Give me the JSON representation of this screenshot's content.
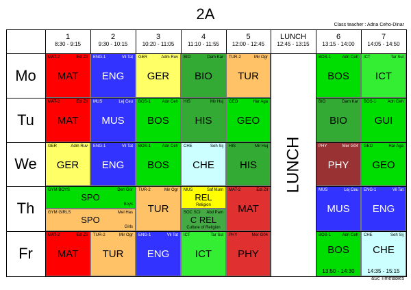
{
  "title": "2A",
  "class_teacher": "Class teacher : Adna Ceho-Dinar",
  "footer": "aSc Timetables",
  "lunch_label": "LUNCH",
  "periods": [
    {
      "num": "1",
      "time": "8:30 - 9:15"
    },
    {
      "num": "2",
      "time": "9:30 - 10:15"
    },
    {
      "num": "3",
      "time": "10:20 - 11:05"
    },
    {
      "num": "4",
      "time": "11:10 - 11:55"
    },
    {
      "num": "5",
      "time": "12:00 - 12:45"
    },
    {
      "num": "LUNCH",
      "time": "12:45 - 13:15"
    },
    {
      "num": "6",
      "time": "13:15 - 14:00"
    },
    {
      "num": "7",
      "time": "14:05 - 14:50"
    }
  ],
  "days": [
    "Mo",
    "Tu",
    "We",
    "Th",
    "Fr"
  ],
  "colors": {
    "red": "#ff0000",
    "blue": "#3333ff",
    "yellow": "#ffff66",
    "green": "#00dd00",
    "orange": "#ffc266",
    "darkgreen": "#33aa33",
    "cyan": "#ccffff",
    "brown": "#993333",
    "lime": "#33ee33",
    "deepred": "#e00000",
    "yellowgold": "#ffff00",
    "olive": "#44aa44",
    "salmon": "#e03030"
  },
  "lessons": [
    {
      "id": "mo1",
      "code": "MAT-2",
      "teacher": "Edi Zil",
      "subject": "MAT",
      "color": "#ff0000"
    },
    {
      "id": "mo2",
      "code": "ENG-1",
      "teacher": "Vil Tat",
      "subject": "ENG",
      "color": "#3333ff"
    },
    {
      "id": "mo3",
      "code": "GER",
      "teacher": "Adm Ruv",
      "subject": "GER",
      "color": "#ffff66"
    },
    {
      "id": "mo4",
      "code": "BIO",
      "teacher": "Dam Kar",
      "subject": "BIO",
      "color": "#33aa33"
    },
    {
      "id": "mo5",
      "code": "TUR-2",
      "teacher": "Mir Ogr",
      "subject": "TUR",
      "color": "#ffc266"
    },
    {
      "id": "mo6",
      "code": "BOS-1",
      "teacher": "Adn Ceh",
      "subject": "BOS",
      "color": "#00dd00"
    },
    {
      "id": "mo7",
      "code": "ICT",
      "teacher": "Tar Sul",
      "subject": "ICT",
      "color": "#33ee33"
    },
    {
      "id": "tu1",
      "code": "MAT-2",
      "teacher": "Edi Zil",
      "subject": "MAT",
      "color": "#ff0000"
    },
    {
      "id": "tu2",
      "code": "MUS",
      "teacher": "Lej Ceu",
      "subject": "MUS",
      "color": "#3333ff"
    },
    {
      "id": "tu3",
      "code": "BOS-1",
      "teacher": "Adn Ceh",
      "subject": "BOS",
      "color": "#00dd00"
    },
    {
      "id": "tu4",
      "code": "HIS",
      "teacher": "Mir Huj",
      "subject": "HIS",
      "color": "#33aa33"
    },
    {
      "id": "tu5",
      "code": "GEO",
      "teacher": "Har Aga",
      "subject": "GEO",
      "color": "#00dd00"
    },
    {
      "id": "tu6",
      "code": "BIO",
      "teacher": "Dam Kar",
      "subject": "BIO",
      "color": "#33aa33"
    },
    {
      "id": "tu7",
      "code": "BOS-1",
      "teacher": "Adn Ceh",
      "subject": "GUI",
      "color": "#00dd00"
    },
    {
      "id": "we1",
      "code": "GER",
      "teacher": "Adm Ruv",
      "subject": "GER",
      "color": "#ffff66"
    },
    {
      "id": "we2",
      "code": "ENG-1",
      "teacher": "Vil Tat",
      "subject": "ENG",
      "color": "#3333ff"
    },
    {
      "id": "we3",
      "code": "BOS-1",
      "teacher": "Adn Ceh",
      "subject": "BOS",
      "color": "#00dd00"
    },
    {
      "id": "we4",
      "code": "CHE",
      "teacher": "Seh Sij",
      "subject": "CHE",
      "color": "#ccffff"
    },
    {
      "id": "we5",
      "code": "HIS",
      "teacher": "Mir Huj",
      "subject": "HIS",
      "color": "#33aa33"
    },
    {
      "id": "we6",
      "code": "PHY",
      "teacher": "Mer G04",
      "subject": "PHY",
      "color": "#993333"
    },
    {
      "id": "we7",
      "code": "GEO",
      "teacher": "Har Aga",
      "subject": "GEO",
      "color": "#00dd00"
    },
    {
      "id": "th12a",
      "code": "GYM BOYS",
      "teacher": "Den Gor",
      "subject": "SPO",
      "note": "Boys",
      "color": "#00dd00"
    },
    {
      "id": "th12b",
      "code": "GYM GIRLS",
      "teacher": "Mel Has",
      "subject": "SPO",
      "note": "Girls",
      "color": "#ffc266"
    },
    {
      "id": "th3",
      "code": "TUR-2",
      "teacher": "Mir Ogr",
      "subject": "TUR",
      "color": "#ffc266"
    },
    {
      "id": "th4a",
      "code": "MUS",
      "teacher": "Saf Mum",
      "subject": "REL",
      "extra": "Religion",
      "color": "#ffff00"
    },
    {
      "id": "th4b",
      "code": "SOC SCI",
      "teacher": "Abd Pam",
      "subject": "C REL",
      "extra": "Culture of Religion",
      "color": "#44aa44"
    },
    {
      "id": "th5",
      "code": "MAT-2",
      "teacher": "Edi Zil",
      "subject": "MAT",
      "color": "#e03030"
    },
    {
      "id": "th6",
      "code": "MUS",
      "teacher": "Lej Ceu",
      "subject": "MUS",
      "color": "#3333ff"
    },
    {
      "id": "th7",
      "code": "ENG-1",
      "teacher": "Vil Tat",
      "subject": "ENG",
      "color": "#3333ff"
    },
    {
      "id": "fr1",
      "code": "MAT-2",
      "teacher": "Edi Zil",
      "subject": "MAT",
      "color": "#ff0000"
    },
    {
      "id": "fr2",
      "code": "TUR-2",
      "teacher": "Mir Ogr",
      "subject": "TUR",
      "color": "#ffc266"
    },
    {
      "id": "fr3",
      "code": "ENG-1",
      "teacher": "Vil Tat",
      "subject": "ENG",
      "color": "#3333ff"
    },
    {
      "id": "fr4",
      "code": "ICT",
      "teacher": "Tar Sul",
      "subject": "ICT",
      "color": "#33ee33"
    },
    {
      "id": "fr5",
      "code": "PHY",
      "teacher": "Mer G04",
      "subject": "PHY",
      "color": "#e03030"
    },
    {
      "id": "fr6",
      "code": "BOS-1",
      "teacher": "Adn Ceh",
      "subject": "BOS",
      "extra": "13:50 - 14:30",
      "color": "#00dd00"
    },
    {
      "id": "fr7",
      "code": "CHE",
      "teacher": "Seh Sij",
      "subject": "CHE",
      "extra": "14:35 - 15:15",
      "color": "#ccffff"
    }
  ]
}
